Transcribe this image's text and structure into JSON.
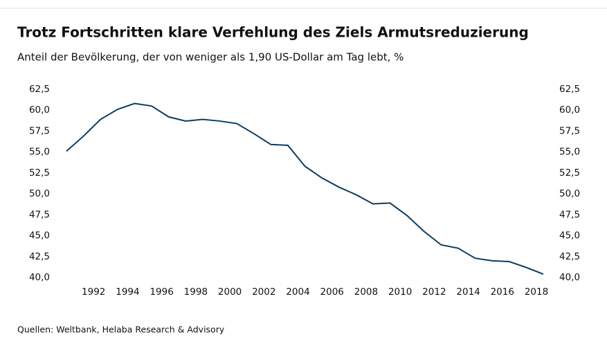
{
  "chart_data": {
    "type": "line",
    "title": "Trotz Fortschritten klare Verfehlung des Ziels Armutsreduzierung",
    "subtitle": "Anteil der Bevölkerung, der von weniger als 1,90 US-Dollar am Tag lebt, %",
    "source": "Quellen: Weltbank, Helaba Research & Advisory",
    "x": [
      1990,
      1991,
      1992,
      1993,
      1994,
      1995,
      1996,
      1997,
      1998,
      1999,
      2000,
      2001,
      2002,
      2003,
      2004,
      2005,
      2006,
      2007,
      2008,
      2009,
      2010,
      2011,
      2012,
      2013,
      2014,
      2015,
      2016,
      2017,
      2018
    ],
    "series": [
      {
        "name": "Anteil",
        "color": "#0b3c61",
        "values": [
          55.1,
          56.9,
          58.9,
          60.1,
          60.8,
          60.5,
          59.2,
          58.7,
          58.9,
          58.7,
          58.4,
          57.2,
          55.9,
          55.8,
          53.3,
          51.9,
          50.8,
          49.9,
          48.8,
          48.9,
          47.4,
          45.5,
          43.9,
          43.5,
          42.3,
          42.0,
          41.9,
          41.2,
          40.4
        ]
      }
    ],
    "xlim": [
      1990,
      2018
    ],
    "xticks": [
      1992,
      1994,
      1996,
      1998,
      2000,
      2002,
      2004,
      2006,
      2008,
      2010,
      2012,
      2014,
      2016,
      2018
    ],
    "ylim": [
      40,
      62.5
    ],
    "yticks": [
      {
        "value": 40,
        "label": "40,0"
      },
      {
        "value": 42.5,
        "label": "42,5"
      },
      {
        "value": 45,
        "label": "45,0"
      },
      {
        "value": 47.5,
        "label": "47,5"
      },
      {
        "value": 50,
        "label": "50,0"
      },
      {
        "value": 52.5,
        "label": "52,5"
      },
      {
        "value": 55,
        "label": "55,0"
      },
      {
        "value": 57.5,
        "label": "57,5"
      },
      {
        "value": 60,
        "label": "60,0"
      },
      {
        "value": 62.5,
        "label": "62,5"
      }
    ],
    "y2lim": [
      40,
      62.5
    ],
    "y2ticks": [
      {
        "value": 40,
        "label": "40,0"
      },
      {
        "value": 42.5,
        "label": "42,5"
      },
      {
        "value": 45,
        "label": "45,0"
      },
      {
        "value": 47.5,
        "label": "47,5"
      },
      {
        "value": 50,
        "label": "50,0"
      },
      {
        "value": 52.5,
        "label": "52,5"
      },
      {
        "value": 55,
        "label": "55,0"
      },
      {
        "value": 57.5,
        "label": "57,5"
      },
      {
        "value": 60,
        "label": "60,0"
      },
      {
        "value": 62.5,
        "label": "62,5"
      }
    ]
  }
}
